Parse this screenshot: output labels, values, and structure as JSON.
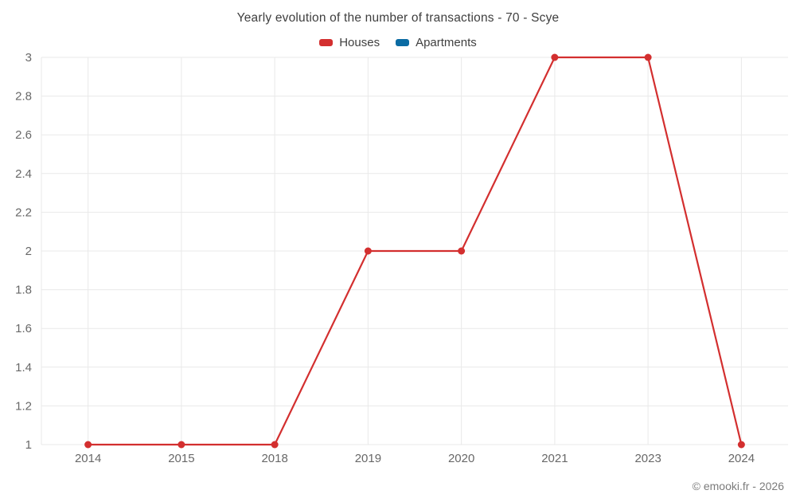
{
  "title": "Yearly evolution of the number of transactions - 70 - Scye",
  "legend": {
    "items": [
      {
        "label": "Houses",
        "color": "#d32f2f"
      },
      {
        "label": "Apartments",
        "color": "#0a6ba3"
      }
    ]
  },
  "watermark": "© emooki.fr - 2026",
  "chart_data": {
    "type": "line",
    "title": "Yearly evolution of the number of transactions - 70 - Scye",
    "categories": [
      "2014",
      "2015",
      "2018",
      "2019",
      "2020",
      "2021",
      "2023",
      "2024"
    ],
    "series": [
      {
        "name": "Houses",
        "color": "#d32f2f",
        "values": [
          1,
          1,
          1,
          2,
          2,
          3,
          3,
          1
        ]
      },
      {
        "name": "Apartments",
        "color": "#0a6ba3",
        "values": []
      }
    ],
    "xlabel": "",
    "ylabel": "",
    "ylim": [
      1,
      3
    ],
    "yticks": [
      1,
      1.2,
      1.4,
      1.6,
      1.8,
      2,
      2.2,
      2.4,
      2.6,
      2.8,
      3
    ],
    "grid": true,
    "legend_position": "top",
    "gridline_color": "#e9e9e9",
    "tick_label_color": "#686868"
  }
}
